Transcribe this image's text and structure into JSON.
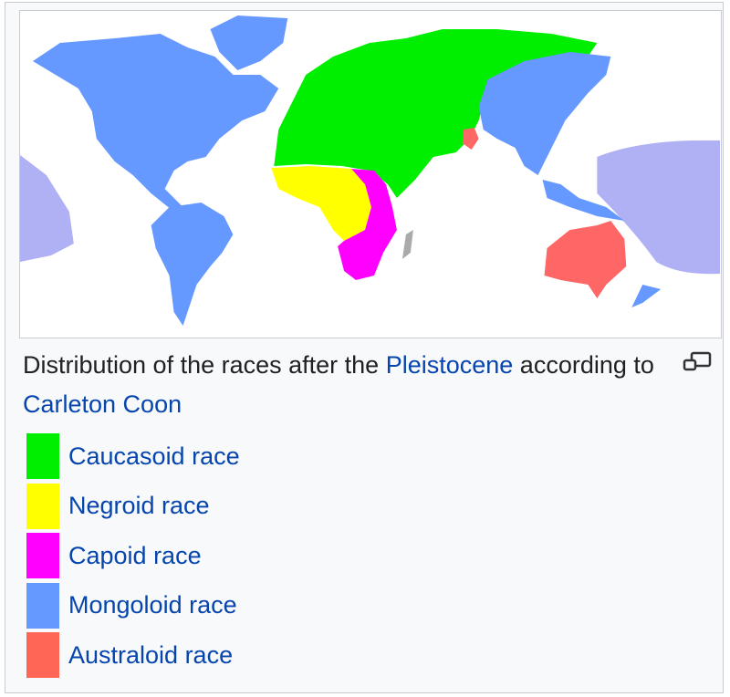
{
  "caption": {
    "text_before": "Distribution of the races after the ",
    "link1": "Pleistocene",
    "text_middle": " according to ",
    "link2": "Carleton Coon"
  },
  "magnify_icon": "magnify-clip-icon",
  "legend": [
    {
      "label": "Caucasoid race",
      "color": "#00ee00"
    },
    {
      "label": "Negroid race",
      "color": "#ffff00"
    },
    {
      "label": "Capoid race",
      "color": "#ff00ff"
    },
    {
      "label": "Mongoloid race",
      "color": "#6699ff"
    },
    {
      "label": "Australoid race",
      "color": "#ff6666"
    }
  ],
  "map_colors": {
    "ocean_region": "#b0b0f5",
    "unassigned": "#aaaaaa"
  }
}
